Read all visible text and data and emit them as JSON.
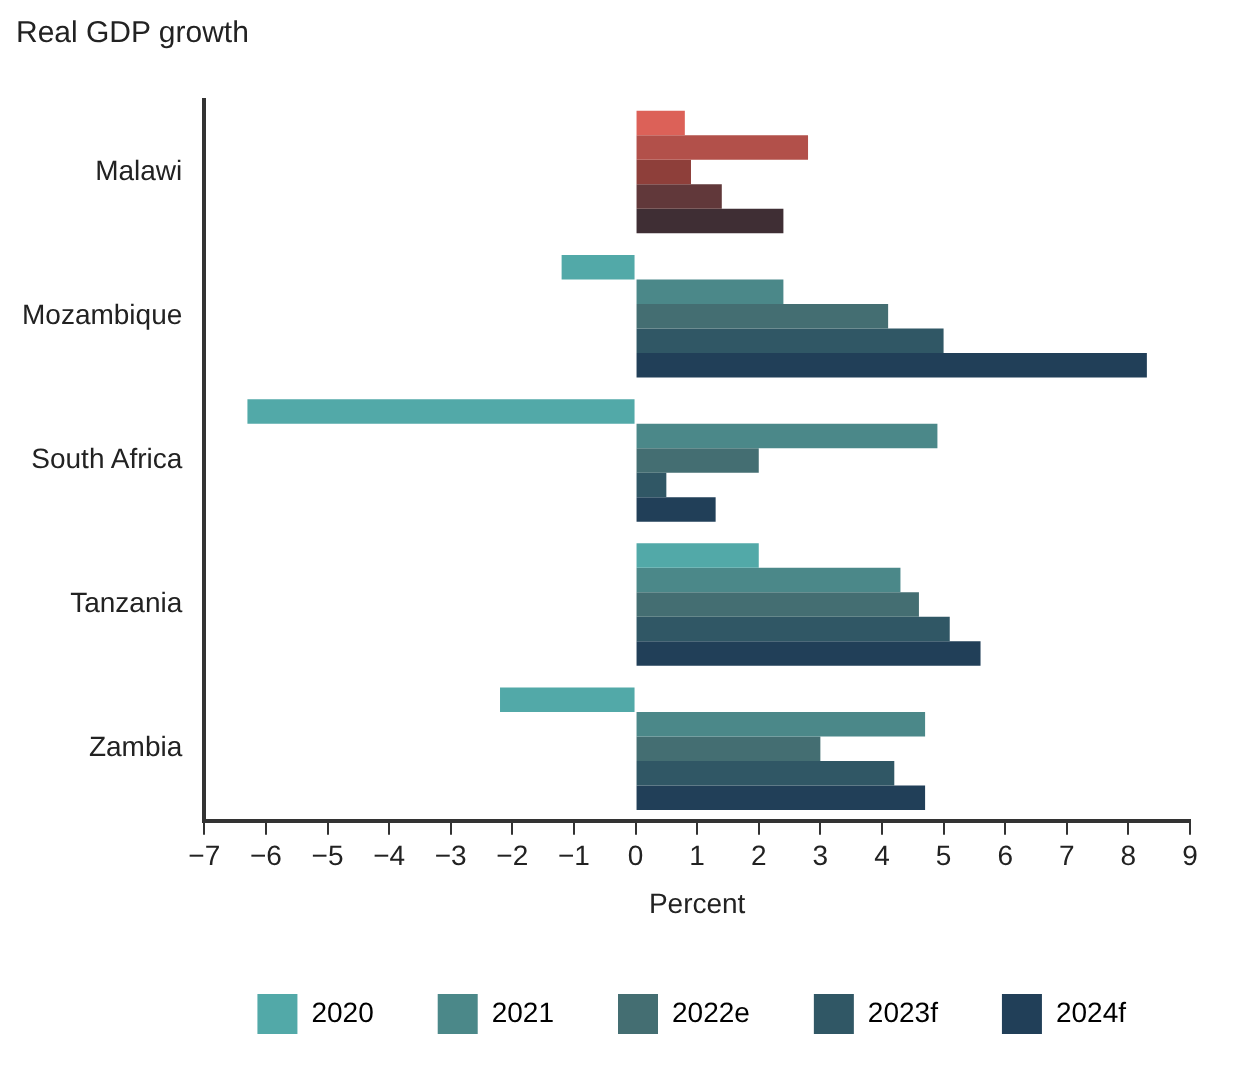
{
  "chart_data": {
    "type": "bar",
    "orientation": "horizontal",
    "title": "Real GDP growth",
    "xlabel": "Percent",
    "categories": [
      "Malawi",
      "Mozambique",
      "South Africa",
      "Tanzania",
      "Zambia"
    ],
    "series": [
      {
        "name": "2020",
        "color": "#52a9a8",
        "colors": [
          "#dc6158",
          "#52a9a8",
          "#52a9a8",
          "#52a9a8",
          "#52a9a8"
        ],
        "values": [
          0.8,
          -1.2,
          -6.3,
          2.0,
          -2.2
        ]
      },
      {
        "name": "2021",
        "color": "#4b8889",
        "colors": [
          "#b2504a",
          "#4b8889",
          "#4b8889",
          "#4b8889",
          "#4b8889"
        ],
        "values": [
          2.8,
          2.4,
          4.9,
          4.3,
          4.7
        ]
      },
      {
        "name": "2022e",
        "color": "#446e72",
        "colors": [
          "#8e3f3a",
          "#446e72",
          "#446e72",
          "#446e72",
          "#446e72"
        ],
        "values": [
          0.9,
          4.1,
          2.0,
          4.6,
          3.0
        ]
      },
      {
        "name": "2023f",
        "color": "#305765",
        "colors": [
          "#61383a",
          "#305765",
          "#305765",
          "#305765",
          "#305765"
        ],
        "values": [
          1.4,
          5.0,
          0.5,
          5.1,
          4.2
        ]
      },
      {
        "name": "2024f",
        "color": "#213f58",
        "colors": [
          "#3f2e34",
          "#213f58",
          "#213f58",
          "#213f58",
          "#213f58"
        ],
        "values": [
          2.4,
          8.3,
          1.3,
          5.6,
          4.7
        ]
      }
    ],
    "xlim": [
      -7,
      9
    ],
    "xticks": [
      {
        "value": -7,
        "label": "−7"
      },
      {
        "value": -6,
        "label": "−6"
      },
      {
        "value": -5,
        "label": "−5"
      },
      {
        "value": -4,
        "label": "−4"
      },
      {
        "value": -3,
        "label": "−3"
      },
      {
        "value": -2,
        "label": "−2"
      },
      {
        "value": -1,
        "label": "−1"
      },
      0,
      1,
      2,
      3,
      4,
      5,
      6,
      7,
      8,
      9
    ],
    "grid": false,
    "legend": "bottom"
  }
}
